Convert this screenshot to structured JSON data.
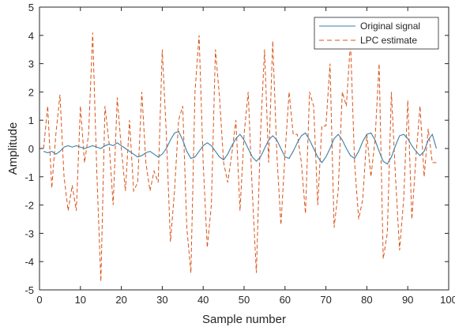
{
  "chart_data": {
    "type": "line",
    "title": "",
    "xlabel": "Sample number",
    "ylabel": "Amplitude",
    "xlim": [
      0,
      100
    ],
    "ylim": [
      -5,
      5
    ],
    "xticks": [
      0,
      10,
      20,
      30,
      40,
      50,
      60,
      70,
      80,
      90,
      100
    ],
    "yticks": [
      -5,
      -4,
      -3,
      -2,
      -1,
      0,
      1,
      2,
      3,
      4,
      5
    ],
    "grid": false,
    "legend_position": "top-right",
    "series": [
      {
        "name": "Original signal",
        "style": "solid",
        "color": "#3a7fa8",
        "x": [
          1,
          2,
          3,
          4,
          5,
          6,
          7,
          8,
          9,
          10,
          11,
          12,
          13,
          14,
          15,
          16,
          17,
          18,
          19,
          20,
          21,
          22,
          23,
          24,
          25,
          26,
          27,
          28,
          29,
          30,
          31,
          32,
          33,
          34,
          35,
          36,
          37,
          38,
          39,
          40,
          41,
          42,
          43,
          44,
          45,
          46,
          47,
          48,
          49,
          50,
          51,
          52,
          53,
          54,
          55,
          56,
          57,
          58,
          59,
          60,
          61,
          62,
          63,
          64,
          65,
          66,
          67,
          68,
          69,
          70,
          71,
          72,
          73,
          74,
          75,
          76,
          77,
          78,
          79,
          80,
          81,
          82,
          83,
          84,
          85,
          86,
          87,
          88,
          89,
          90,
          91,
          92,
          93,
          94,
          95,
          96,
          97
        ],
        "y": [
          -0.1,
          -0.15,
          -0.1,
          -0.2,
          -0.1,
          0.05,
          0.1,
          0.05,
          0.1,
          0.05,
          0.0,
          0.05,
          0.1,
          0.05,
          0.0,
          0.1,
          0.15,
          0.1,
          0.2,
          0.1,
          0.0,
          -0.1,
          -0.2,
          -0.3,
          -0.25,
          -0.15,
          -0.1,
          -0.2,
          -0.3,
          -0.2,
          0.0,
          0.3,
          0.55,
          0.6,
          0.3,
          -0.1,
          -0.35,
          -0.3,
          -0.1,
          0.1,
          0.2,
          0.1,
          -0.1,
          -0.3,
          -0.4,
          -0.2,
          0.1,
          0.35,
          0.5,
          0.3,
          0.0,
          -0.3,
          -0.45,
          -0.3,
          0.0,
          0.3,
          0.45,
          0.3,
          0.0,
          -0.3,
          -0.35,
          -0.1,
          0.2,
          0.45,
          0.55,
          0.3,
          0.0,
          -0.3,
          -0.5,
          -0.3,
          0.0,
          0.35,
          0.5,
          0.3,
          0.0,
          -0.25,
          -0.35,
          -0.1,
          0.25,
          0.5,
          0.55,
          0.3,
          -0.1,
          -0.45,
          -0.55,
          -0.3,
          0.1,
          0.45,
          0.5,
          0.35,
          0.1,
          -0.1,
          -0.25,
          -0.1,
          0.3,
          0.5,
          0.0
        ]
      },
      {
        "name": "LPC estimate",
        "style": "dashed",
        "color": "#d95319",
        "x": [
          1,
          2,
          3,
          4,
          5,
          6,
          7,
          8,
          9,
          10,
          11,
          12,
          13,
          14,
          15,
          16,
          17,
          18,
          19,
          20,
          21,
          22,
          23,
          24,
          25,
          26,
          27,
          28,
          29,
          30,
          31,
          32,
          33,
          34,
          35,
          36,
          37,
          38,
          39,
          40,
          41,
          42,
          43,
          44,
          45,
          46,
          47,
          48,
          49,
          50,
          51,
          52,
          53,
          54,
          55,
          56,
          57,
          58,
          59,
          60,
          61,
          62,
          63,
          64,
          65,
          66,
          67,
          68,
          69,
          70,
          71,
          72,
          73,
          74,
          75,
          76,
          77,
          78,
          79,
          80,
          81,
          82,
          83,
          84,
          85,
          86,
          87,
          88,
          89,
          90,
          91,
          92,
          93,
          94,
          95,
          96,
          97
        ],
        "y": [
          0.0,
          1.5,
          -1.4,
          0.5,
          1.9,
          -1.0,
          -2.2,
          -1.3,
          -2.2,
          1.5,
          -0.5,
          0.5,
          4.1,
          -0.8,
          -4.7,
          1.5,
          0.2,
          -2.0,
          1.8,
          0.0,
          -1.5,
          1.0,
          -1.5,
          -1.2,
          2.0,
          -0.5,
          -1.5,
          -0.8,
          -1.2,
          3.5,
          0.5,
          -3.3,
          -1.5,
          1.0,
          1.5,
          -2.8,
          -4.4,
          2.0,
          4.0,
          -0.5,
          -3.5,
          -2.0,
          3.5,
          1.8,
          -0.5,
          -1.2,
          -0.2,
          1.0,
          -2.2,
          0.5,
          2.0,
          -1.5,
          -4.4,
          0.5,
          3.5,
          -0.5,
          3.8,
          -0.2,
          -2.7,
          -0.2,
          2.0,
          0.5,
          0.5,
          -0.5,
          -2.3,
          2.0,
          1.5,
          -2.0,
          0.8,
          0.8,
          3.0,
          -2.8,
          -1.5,
          2.0,
          1.5,
          3.8,
          -0.5,
          -2.5,
          -1.8,
          0.5,
          -1.0,
          0.3,
          3.0,
          -3.9,
          -3.0,
          2.0,
          -1.0,
          -3.6,
          -1.8,
          1.7,
          -2.5,
          -0.3,
          1.5,
          -1.0,
          0.7,
          -0.5,
          -0.5
        ]
      }
    ]
  }
}
